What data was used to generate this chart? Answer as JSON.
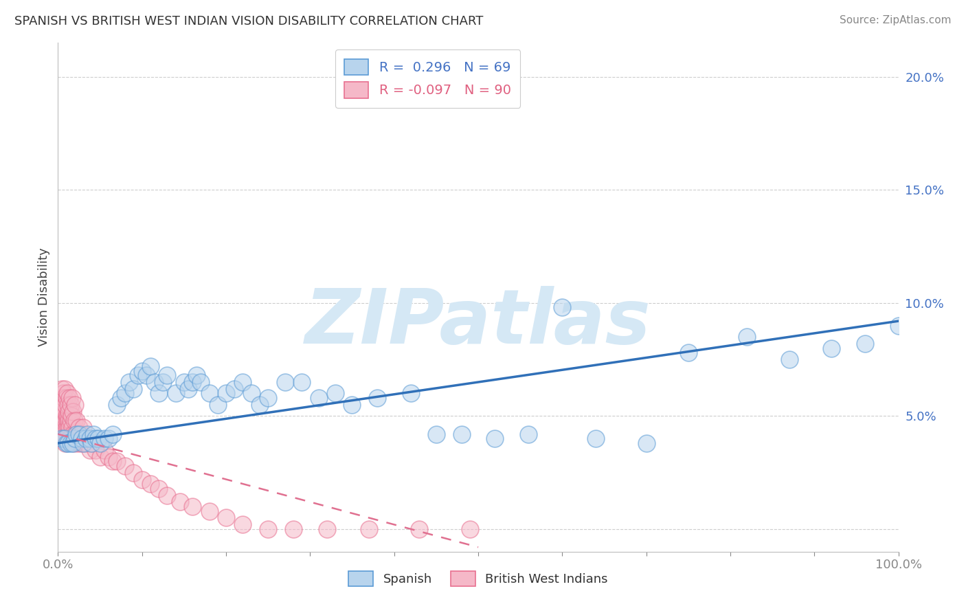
{
  "title": "SPANISH VS BRITISH WEST INDIAN VISION DISABILITY CORRELATION CHART",
  "source": "Source: ZipAtlas.com",
  "ylabel": "Vision Disability",
  "watermark": "ZIPatlas",
  "xlim": [
    0.0,
    1.0
  ],
  "ylim": [
    -0.01,
    0.215
  ],
  "spanish_R": 0.296,
  "spanish_N": 69,
  "bwi_R": -0.097,
  "bwi_N": 90,
  "spanish_fill": "#b8d4ed",
  "bwi_fill": "#f5b8c8",
  "spanish_edge": "#5b9bd5",
  "bwi_edge": "#e87090",
  "spanish_line_color": "#3070b8",
  "bwi_line_color": "#e07090",
  "background_color": "#ffffff",
  "grid_color": "#c8c8c8",
  "watermark_color": "#d5e8f5",
  "sp_x": [
    0.005,
    0.008,
    0.01,
    0.012,
    0.015,
    0.018,
    0.02,
    0.022,
    0.025,
    0.028,
    0.03,
    0.033,
    0.035,
    0.038,
    0.04,
    0.042,
    0.045,
    0.048,
    0.05,
    0.055,
    0.06,
    0.065,
    0.07,
    0.075,
    0.08,
    0.085,
    0.09,
    0.095,
    0.1,
    0.105,
    0.11,
    0.115,
    0.12,
    0.125,
    0.13,
    0.14,
    0.15,
    0.155,
    0.16,
    0.165,
    0.17,
    0.18,
    0.19,
    0.2,
    0.21,
    0.22,
    0.23,
    0.24,
    0.25,
    0.27,
    0.29,
    0.31,
    0.33,
    0.35,
    0.38,
    0.42,
    0.45,
    0.48,
    0.52,
    0.56,
    0.6,
    0.64,
    0.7,
    0.75,
    0.82,
    0.87,
    0.92,
    0.96,
    1.0
  ],
  "sp_y": [
    0.04,
    0.04,
    0.038,
    0.038,
    0.038,
    0.038,
    0.04,
    0.042,
    0.042,
    0.04,
    0.038,
    0.04,
    0.042,
    0.04,
    0.038,
    0.042,
    0.04,
    0.04,
    0.038,
    0.04,
    0.04,
    0.042,
    0.055,
    0.058,
    0.06,
    0.065,
    0.062,
    0.068,
    0.07,
    0.068,
    0.072,
    0.065,
    0.06,
    0.065,
    0.068,
    0.06,
    0.065,
    0.062,
    0.065,
    0.068,
    0.065,
    0.06,
    0.055,
    0.06,
    0.062,
    0.065,
    0.06,
    0.055,
    0.058,
    0.065,
    0.065,
    0.058,
    0.06,
    0.055,
    0.058,
    0.06,
    0.042,
    0.042,
    0.04,
    0.042,
    0.098,
    0.04,
    0.038,
    0.078,
    0.085,
    0.075,
    0.08,
    0.082,
    0.09
  ],
  "bwi_x": [
    0.001,
    0.002,
    0.002,
    0.003,
    0.003,
    0.004,
    0.004,
    0.004,
    0.005,
    0.005,
    0.005,
    0.006,
    0.006,
    0.006,
    0.007,
    0.007,
    0.007,
    0.008,
    0.008,
    0.009,
    0.009,
    0.01,
    0.01,
    0.011,
    0.011,
    0.012,
    0.012,
    0.013,
    0.013,
    0.014,
    0.014,
    0.015,
    0.015,
    0.016,
    0.017,
    0.018,
    0.019,
    0.02,
    0.022,
    0.024,
    0.025,
    0.028,
    0.03,
    0.032,
    0.035,
    0.038,
    0.04,
    0.045,
    0.05,
    0.055,
    0.06,
    0.065,
    0.07,
    0.08,
    0.09,
    0.1,
    0.11,
    0.12,
    0.13,
    0.145,
    0.16,
    0.18,
    0.2,
    0.22,
    0.25,
    0.28,
    0.32,
    0.37,
    0.43,
    0.49,
    0.005,
    0.006,
    0.007,
    0.008,
    0.009,
    0.01,
    0.011,
    0.012,
    0.013,
    0.014,
    0.015,
    0.016,
    0.017,
    0.018,
    0.019,
    0.02,
    0.022,
    0.025,
    0.028,
    0.03
  ],
  "bwi_y": [
    0.05,
    0.052,
    0.048,
    0.055,
    0.045,
    0.05,
    0.042,
    0.058,
    0.046,
    0.052,
    0.04,
    0.048,
    0.055,
    0.044,
    0.05,
    0.042,
    0.058,
    0.045,
    0.052,
    0.048,
    0.038,
    0.05,
    0.045,
    0.048,
    0.042,
    0.05,
    0.045,
    0.042,
    0.048,
    0.045,
    0.04,
    0.048,
    0.052,
    0.042,
    0.045,
    0.042,
    0.038,
    0.042,
    0.04,
    0.038,
    0.042,
    0.038,
    0.04,
    0.038,
    0.038,
    0.035,
    0.038,
    0.035,
    0.032,
    0.035,
    0.032,
    0.03,
    0.03,
    0.028,
    0.025,
    0.022,
    0.02,
    0.018,
    0.015,
    0.012,
    0.01,
    0.008,
    0.005,
    0.002,
    0.0,
    0.0,
    0.0,
    0.0,
    0.0,
    0.0,
    0.062,
    0.06,
    0.058,
    0.062,
    0.055,
    0.058,
    0.06,
    0.055,
    0.052,
    0.058,
    0.055,
    0.05,
    0.058,
    0.052,
    0.048,
    0.055,
    0.048,
    0.045,
    0.042,
    0.045
  ],
  "sp_line_x0": 0.0,
  "sp_line_x1": 1.0,
  "sp_line_y0": 0.038,
  "sp_line_y1": 0.092,
  "bwi_line_x0": 0.0,
  "bwi_line_x1": 0.5,
  "bwi_line_y0": 0.042,
  "bwi_line_y1": -0.008
}
